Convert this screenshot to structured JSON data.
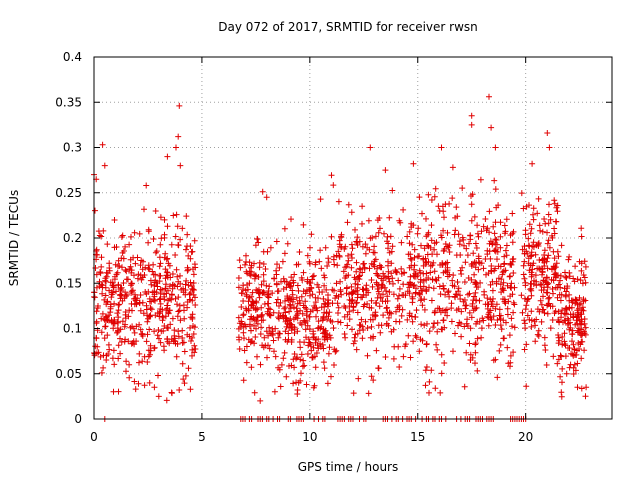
{
  "chart_data": {
    "type": "scatter",
    "title": "Day 072 of 2017, SRMTID for receiver rwsn",
    "xlabel": "GPS time / hours",
    "ylabel": "SRMTID / TECUs",
    "xlim": [
      0,
      24
    ],
    "ylim": [
      0,
      0.4
    ],
    "x_ticks": [
      0,
      5,
      10,
      15,
      20
    ],
    "x_tick_labels": [
      "0",
      "5",
      "10",
      "15",
      "20"
    ],
    "y_ticks": [
      0,
      0.05,
      0.1,
      0.15,
      0.2,
      0.25,
      0.3,
      0.35,
      0.4
    ],
    "y_tick_labels": [
      "0",
      "0.05",
      "0.1",
      "0.15",
      "0.2",
      "0.25",
      "0.3",
      "0.35",
      "0.4"
    ],
    "grid": true,
    "marker": "plus",
    "color": "#e00000",
    "series": [
      {
        "name": "SRMTID",
        "segments": [
          {
            "x_start": 0.0,
            "x_end": 4.7,
            "y_center": 0.13,
            "y_spread": 0.07,
            "count": 520
          },
          {
            "x_start": 6.7,
            "x_end": 9.0,
            "y_center": 0.12,
            "y_spread": 0.06,
            "count": 230
          },
          {
            "x_start": 9.0,
            "x_end": 11.0,
            "y_center": 0.11,
            "y_spread": 0.06,
            "count": 230
          },
          {
            "x_start": 11.0,
            "x_end": 15.0,
            "y_center": 0.145,
            "y_spread": 0.065,
            "count": 360
          },
          {
            "x_start": 15.0,
            "x_end": 19.5,
            "y_center": 0.15,
            "y_spread": 0.075,
            "count": 440
          },
          {
            "x_start": 19.8,
            "x_end": 21.5,
            "y_center": 0.16,
            "y_spread": 0.07,
            "count": 200
          },
          {
            "x_start": 21.5,
            "x_end": 22.8,
            "y_center": 0.11,
            "y_spread": 0.055,
            "count": 170
          }
        ],
        "notable_points": [
          {
            "x": 0.0,
            "y": 0.27
          },
          {
            "x": 0.1,
            "y": 0.265
          },
          {
            "x": 0.4,
            "y": 0.303
          },
          {
            "x": 0.5,
            "y": 0.28
          },
          {
            "x": 3.4,
            "y": 0.29
          },
          {
            "x": 3.8,
            "y": 0.3
          },
          {
            "x": 3.9,
            "y": 0.312
          },
          {
            "x": 3.95,
            "y": 0.346
          },
          {
            "x": 4.0,
            "y": 0.28
          },
          {
            "x": 3.0,
            "y": 0.025
          },
          {
            "x": 2.8,
            "y": 0.035
          },
          {
            "x": 8.0,
            "y": 0.245
          },
          {
            "x": 7.7,
            "y": 0.02
          },
          {
            "x": 10.5,
            "y": 0.243
          },
          {
            "x": 12.8,
            "y": 0.3
          },
          {
            "x": 13.5,
            "y": 0.275
          },
          {
            "x": 14.8,
            "y": 0.282
          },
          {
            "x": 16.1,
            "y": 0.3
          },
          {
            "x": 17.5,
            "y": 0.335
          },
          {
            "x": 17.5,
            "y": 0.325
          },
          {
            "x": 18.3,
            "y": 0.356
          },
          {
            "x": 18.4,
            "y": 0.322
          },
          {
            "x": 18.6,
            "y": 0.3
          },
          {
            "x": 20.3,
            "y": 0.282
          },
          {
            "x": 21.0,
            "y": 0.316
          },
          {
            "x": 21.1,
            "y": 0.3
          },
          {
            "x": 22.4,
            "y": 0.035
          },
          {
            "x": 22.8,
            "y": 0.035
          },
          {
            "x": 21.9,
            "y": 0.05
          }
        ],
        "zero_values_x": [
          0.5,
          6.8,
          6.9,
          7.0,
          7.2,
          7.3,
          7.6,
          7.7,
          7.8,
          8.0,
          8.1,
          8.3,
          8.5,
          8.6,
          9.0,
          9.1,
          9.4,
          9.5,
          9.6,
          9.7,
          10.2,
          10.4,
          10.6,
          10.7,
          11.3,
          11.4,
          11.5,
          11.6,
          11.8,
          11.9,
          12.0,
          12.3,
          12.5,
          12.6,
          13.4,
          13.5,
          13.6,
          13.8,
          14.0,
          14.1,
          14.3,
          14.5,
          14.6,
          14.7,
          14.9,
          15.2,
          15.4,
          15.5,
          15.7,
          15.8,
          16.0,
          16.1,
          16.3,
          16.8,
          17.0,
          17.2,
          17.3,
          17.4,
          17.7,
          17.8,
          17.9,
          18.0,
          18.2,
          18.3,
          18.4,
          18.5,
          19.3,
          19.4,
          19.5,
          19.6,
          19.7,
          19.8,
          19.9,
          20.0
        ]
      }
    ]
  }
}
